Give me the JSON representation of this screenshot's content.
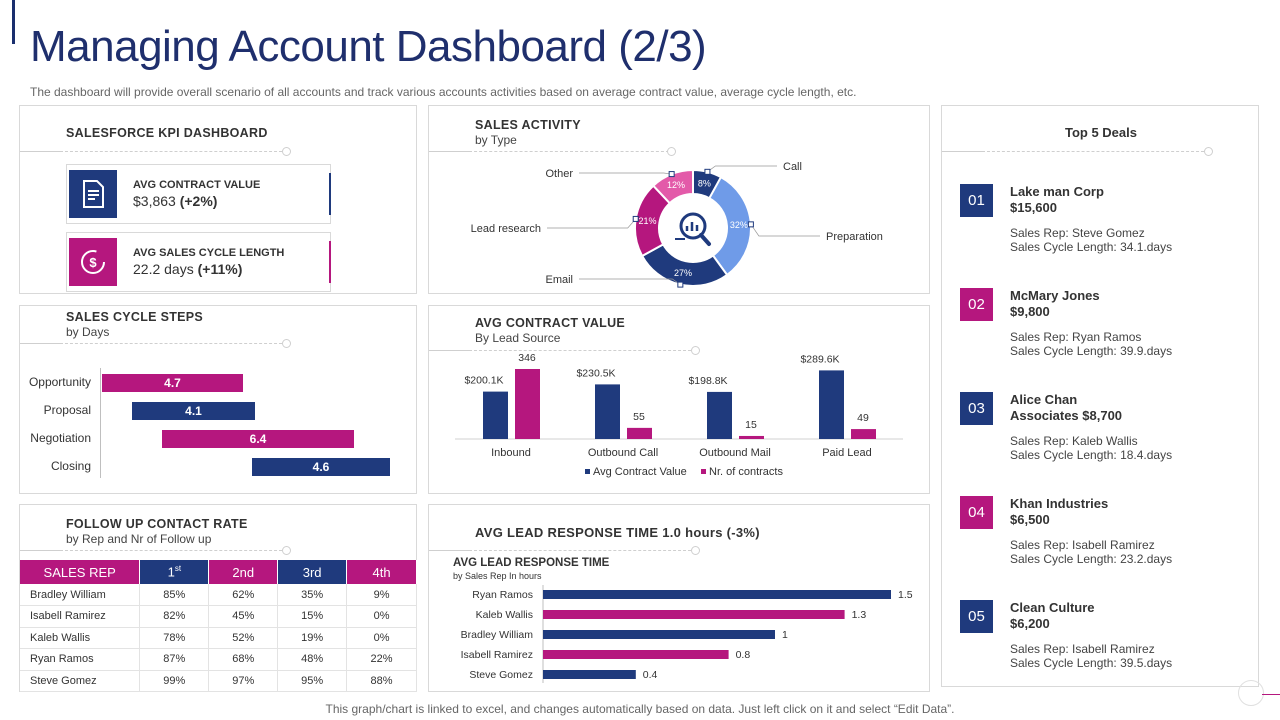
{
  "header": {
    "title": "Managing Account Dashboard (2/3)",
    "subtitle": "The dashboard will provide overall scenario of all accounts and track various accounts activities based on average contract value, average cycle length, etc."
  },
  "footer": "This graph/chart is linked to excel,  and changes automatically based on data. Just left click on it and select “Edit Data”.",
  "colors": {
    "navy": "#1f3a7d",
    "magenta": "#b5177e",
    "light_blue": "#6f9be8",
    "pink": "#e35aa9"
  },
  "kpi": {
    "title": "SALESFORCE KPI DASHBOARD",
    "cards": [
      {
        "icon": "document-icon",
        "label": "AVG CONTRACT VALUE",
        "value": "$3,863",
        "change": "(+2%)"
      },
      {
        "icon": "dollar-cycle-icon",
        "label": "AVG SALES CYCLE LENGTH",
        "value": "22.2 days",
        "change": "(+11%)"
      }
    ]
  },
  "sales_activity": {
    "title": "SALES ACTIVITY",
    "subtitle": "by Type",
    "center_icon": "magnifier-chart-icon"
  },
  "sales_cycle": {
    "title": "SALES CYCLE STEPS",
    "subtitle": "by Days"
  },
  "avg_contract": {
    "title": "AVG CONTRACT VALUE",
    "subtitle": "By Lead Source"
  },
  "follow_up": {
    "title": "FOLLOW UP CONTACT RATE",
    "subtitle": "by Rep and Nr of Follow up",
    "headers": [
      "SALES REP",
      "1",
      "st",
      "2nd",
      "3rd",
      "4th"
    ],
    "rows": [
      [
        "Bradley William",
        "85%",
        "62%",
        "35%",
        "9%"
      ],
      [
        "Isabell Ramirez",
        "82%",
        "45%",
        "15%",
        "0%"
      ],
      [
        "Kaleb Wallis",
        "78%",
        "52%",
        "19%",
        "0%"
      ],
      [
        "Ryan Ramos",
        "87%",
        "68%",
        "48%",
        "22%"
      ],
      [
        "Steve Gomez",
        "99%",
        "97%",
        "95%",
        "88%"
      ]
    ]
  },
  "lead_response": {
    "title": "AVG LEAD RESPONSE TIME 1.0 hours (-3%)",
    "chart_title": "AVG LEAD RESPONSE TIME",
    "chart_subtitle": "by Sales Rep In hours"
  },
  "top_deals": {
    "title": "Top 5 Deals",
    "items": [
      {
        "num": "01",
        "name": "Lake man Corp",
        "amount": "$15,600",
        "rep": "Sales Rep: Steve Gomez",
        "cycle": "Sales Cycle Length: 34.1.days"
      },
      {
        "num": "02",
        "name": "McMary Jones",
        "amount": "$9,800",
        "rep": "Sales Rep: Ryan Ramos",
        "cycle": "Sales Cycle Length: 39.9.days"
      },
      {
        "num": "03",
        "name": "Alice Chan",
        "amount": "Associates $8,700",
        "rep": "Sales Rep: Kaleb Wallis",
        "cycle": "Sales Cycle Length: 18.4.days"
      },
      {
        "num": "04",
        "name": "Khan Industries",
        "amount": "$6,500",
        "rep": "Sales Rep: Isabell Ramirez",
        "cycle": "Sales Cycle Length: 23.2.days"
      },
      {
        "num": "05",
        "name": "Clean Culture",
        "amount": "$6,200",
        "rep": "Sales Rep: Isabell Ramirez",
        "cycle": "Sales Cycle Length: 39.5.days"
      }
    ]
  },
  "chart_data": [
    {
      "type": "pie",
      "title": "SALES ACTIVITY by Type",
      "categories": [
        "Call",
        "Preparation",
        "Email",
        "Lead research",
        "Other"
      ],
      "values": [
        8,
        32,
        27,
        21,
        12
      ],
      "labels": [
        "8%",
        "32%",
        "27%",
        "21%",
        "12%"
      ],
      "colors": [
        "#1f3a7d",
        "#6f9be8",
        "#1f3a7d",
        "#b5177e",
        "#e35aa9"
      ]
    },
    {
      "type": "bar",
      "title": "SALES CYCLE STEPS by Days",
      "categories": [
        "Opportunity",
        "Proposal",
        "Negotiation",
        "Closing"
      ],
      "starts": [
        0,
        1,
        2,
        5
      ],
      "values": [
        4.7,
        4.1,
        6.4,
        4.6
      ],
      "labels": [
        "4.7",
        "4.1",
        "6.4",
        "4.6"
      ],
      "xlim": [
        0,
        11
      ]
    },
    {
      "type": "bar",
      "title": "AVG CONTRACT VALUE By Lead Source",
      "categories": [
        "Inbound",
        "Outbound Call",
        "Outbound Mail",
        "Paid Lead"
      ],
      "series": [
        {
          "name": "Avg Contract Value",
          "values": [
            200.1,
            230.5,
            198.8,
            289.6
          ],
          "labels": [
            "$200.1K",
            "$230.5K",
            "$198.8K",
            "$289.6K"
          ]
        },
        {
          "name": "Nr. of contracts",
          "values": [
            346,
            55,
            15,
            49
          ],
          "labels": [
            "346",
            "55",
            "15",
            "49"
          ]
        }
      ]
    },
    {
      "type": "bar",
      "title": "AVG LEAD RESPONSE TIME by Sales Rep In hours",
      "categories": [
        "Ryan Ramos",
        "Kaleb Wallis",
        "Bradley William",
        "Isabell Ramirez",
        "Steve Gomez"
      ],
      "values": [
        1.5,
        1.3,
        1,
        0.8,
        0.4
      ],
      "labels": [
        "1.5",
        "1.3",
        "1",
        "0.8",
        "0.4"
      ],
      "xlim": [
        0,
        1.6
      ]
    }
  ]
}
